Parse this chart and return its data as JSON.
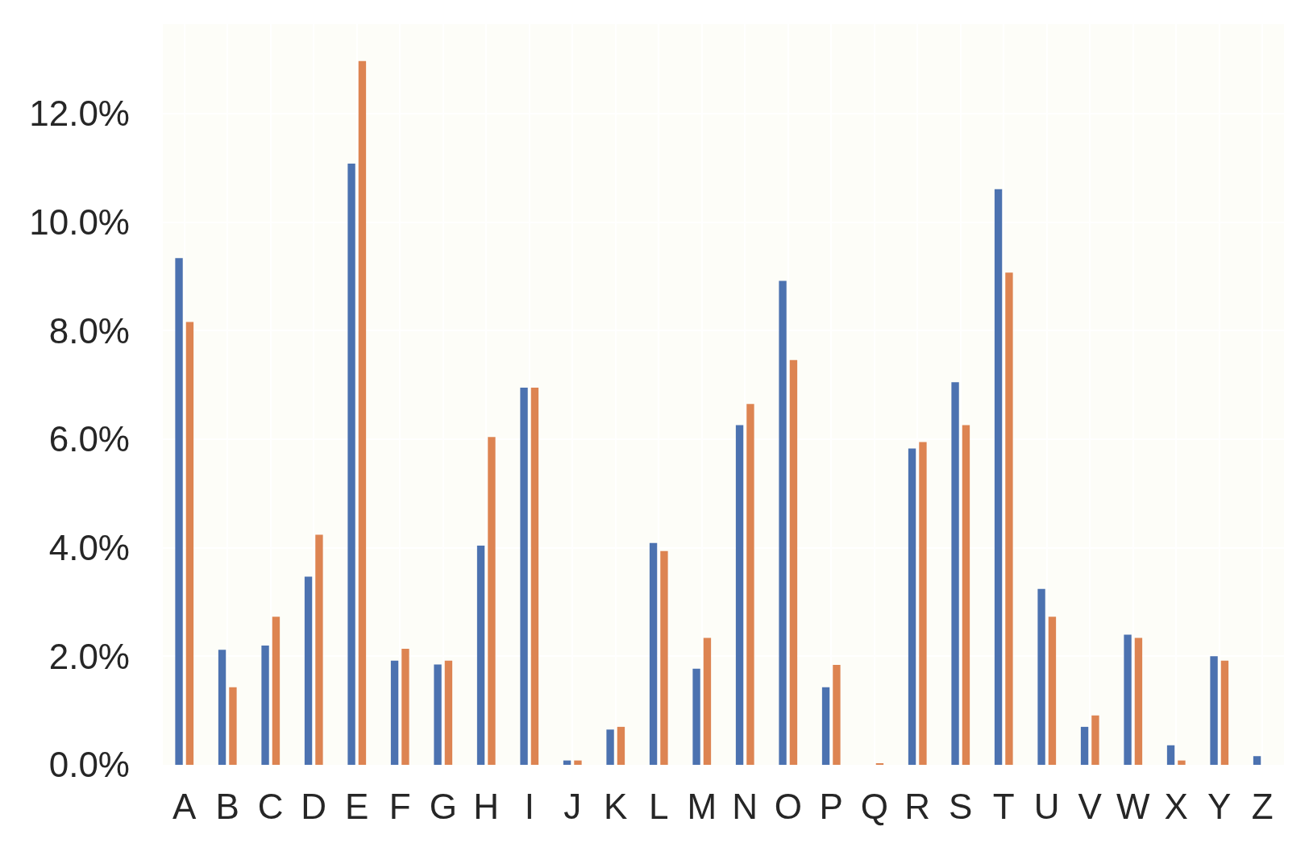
{
  "chart_data": {
    "type": "bar",
    "categories": [
      "A",
      "B",
      "C",
      "D",
      "E",
      "F",
      "G",
      "H",
      "I",
      "J",
      "K",
      "L",
      "M",
      "N",
      "O",
      "P",
      "Q",
      "R",
      "S",
      "T",
      "U",
      "V",
      "W",
      "X",
      "Y",
      "Z"
    ],
    "series": [
      {
        "color": "#4c72b0",
        "values": [
          9.34,
          2.12,
          2.2,
          3.47,
          11.08,
          1.92,
          1.85,
          4.04,
          6.95,
          0.08,
          0.65,
          4.09,
          1.77,
          6.26,
          8.92,
          1.43,
          null,
          5.83,
          7.05,
          10.61,
          3.24,
          0.7,
          2.4,
          0.36,
          2.0,
          0.16
        ]
      },
      {
        "color": "#dd8452",
        "values": [
          8.16,
          1.43,
          2.73,
          4.24,
          12.97,
          2.14,
          1.92,
          6.04,
          6.95,
          0.08,
          0.7,
          3.94,
          2.34,
          6.65,
          7.46,
          1.84,
          0.02,
          5.95,
          6.26,
          9.07,
          2.73,
          0.91,
          2.34,
          0.08,
          1.92,
          null
        ]
      }
    ],
    "ylim": [
      0,
      13.65
    ],
    "yticks": [
      {
        "value": 0,
        "label": "0.0%"
      },
      {
        "value": 2,
        "label": "2.0%"
      },
      {
        "value": 4,
        "label": "4.0%"
      },
      {
        "value": 6,
        "label": "6.0%"
      },
      {
        "value": 8,
        "label": "8.0%"
      },
      {
        "value": 10,
        "label": "10.0%"
      },
      {
        "value": 12,
        "label": "12.0%"
      }
    ],
    "grid": true
  }
}
